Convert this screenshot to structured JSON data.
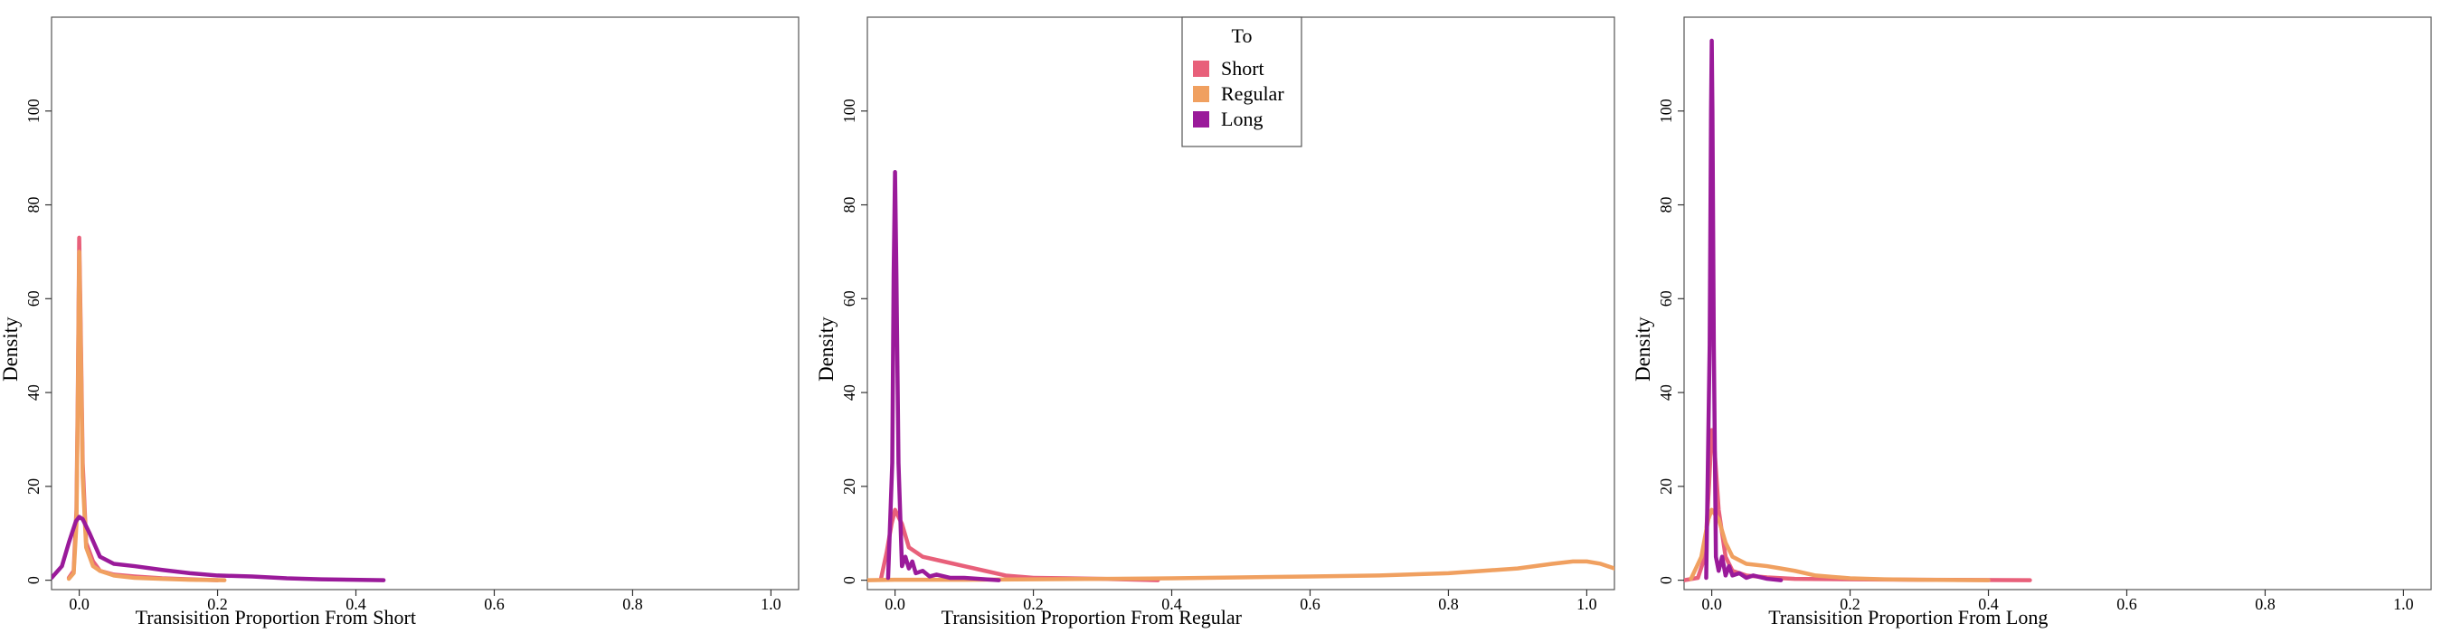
{
  "legend": {
    "title": "To",
    "entries": [
      {
        "label": "Short",
        "color": "#e8607a"
      },
      {
        "label": "Regular",
        "color": "#f0a060"
      },
      {
        "label": "Long",
        "color": "#9a1a9a"
      }
    ],
    "placement": "top-center of middle panel"
  },
  "chart_data": [
    {
      "type": "line",
      "subtype": "density",
      "xlabel": "Transisition Proportion From Short",
      "ylabel": "Density",
      "xlim": [
        -0.04,
        1.04
      ],
      "ylim": [
        -2,
        120
      ],
      "xticks": [
        "0.0",
        "0.2",
        "0.4",
        "0.6",
        "0.8",
        "1.0"
      ],
      "yticks": [
        "0",
        "20",
        "40",
        "60",
        "80",
        "100"
      ],
      "grid": false,
      "series": [
        {
          "name": "Short",
          "color": "#e8607a",
          "points": [
            [
              -0.015,
              0.5
            ],
            [
              -0.008,
              2
            ],
            [
              -0.004,
              15
            ],
            [
              -0.002,
              40
            ],
            [
              0,
              73
            ],
            [
              0.002,
              55
            ],
            [
              0.005,
              25
            ],
            [
              0.01,
              8
            ],
            [
              0.02,
              4
            ],
            [
              0.03,
              2
            ],
            [
              0.05,
              1.2
            ],
            [
              0.08,
              0.8
            ],
            [
              0.12,
              0.4
            ],
            [
              0.16,
              0.2
            ],
            [
              0.2,
              0
            ]
          ]
        },
        {
          "name": "Regular",
          "color": "#f0a060",
          "points": [
            [
              -0.015,
              0.3
            ],
            [
              -0.008,
              1.5
            ],
            [
              -0.004,
              12
            ],
            [
              -0.002,
              38
            ],
            [
              0,
              70
            ],
            [
              0.002,
              52
            ],
            [
              0.005,
              22
            ],
            [
              0.01,
              7
            ],
            [
              0.02,
              3
            ],
            [
              0.03,
              2
            ],
            [
              0.05,
              1
            ],
            [
              0.08,
              0.5
            ],
            [
              0.12,
              0.3
            ],
            [
              0.16,
              0.1
            ],
            [
              0.21,
              0
            ]
          ]
        },
        {
          "name": "Long",
          "color": "#9a1a9a",
          "points": [
            [
              -0.04,
              0.5
            ],
            [
              -0.025,
              3
            ],
            [
              -0.015,
              8
            ],
            [
              -0.005,
              12.5
            ],
            [
              0,
              13.5
            ],
            [
              0.005,
              13
            ],
            [
              0.015,
              10
            ],
            [
              0.03,
              5
            ],
            [
              0.05,
              3.5
            ],
            [
              0.08,
              3
            ],
            [
              0.12,
              2.2
            ],
            [
              0.16,
              1.5
            ],
            [
              0.2,
              1
            ],
            [
              0.25,
              0.8
            ],
            [
              0.3,
              0.4
            ],
            [
              0.35,
              0.2
            ],
            [
              0.44,
              0
            ]
          ]
        }
      ]
    },
    {
      "type": "line",
      "subtype": "density",
      "xlabel": "Transisition Proportion From Regular",
      "ylabel": "Density",
      "xlim": [
        -0.04,
        1.04
      ],
      "ylim": [
        -2,
        120
      ],
      "xticks": [
        "0.0",
        "0.2",
        "0.4",
        "0.6",
        "0.8",
        "1.0"
      ],
      "yticks": [
        "0",
        "20",
        "40",
        "60",
        "80",
        "100"
      ],
      "grid": false,
      "series": [
        {
          "name": "Short",
          "color": "#e8607a",
          "points": [
            [
              -0.02,
              0.5
            ],
            [
              -0.012,
              6
            ],
            [
              -0.005,
              12
            ],
            [
              0,
              15
            ],
            [
              0.01,
              12
            ],
            [
              0.02,
              7
            ],
            [
              0.04,
              5
            ],
            [
              0.07,
              4
            ],
            [
              0.1,
              3
            ],
            [
              0.13,
              2
            ],
            [
              0.16,
              1
            ],
            [
              0.2,
              0.5
            ],
            [
              0.25,
              0.4
            ],
            [
              0.3,
              0.3
            ],
            [
              0.38,
              0
            ]
          ]
        },
        {
          "name": "Regular",
          "color": "#f0a060",
          "points": [
            [
              -0.04,
              0
            ],
            [
              0,
              0.1
            ],
            [
              0.1,
              0.1
            ],
            [
              0.2,
              0.2
            ],
            [
              0.3,
              0.3
            ],
            [
              0.4,
              0.4
            ],
            [
              0.5,
              0.6
            ],
            [
              0.6,
              0.8
            ],
            [
              0.7,
              1
            ],
            [
              0.8,
              1.5
            ],
            [
              0.85,
              2
            ],
            [
              0.9,
              2.5
            ],
            [
              0.95,
              3.5
            ],
            [
              0.98,
              4
            ],
            [
              1.0,
              4
            ],
            [
              1.02,
              3.5
            ],
            [
              1.04,
              2.5
            ]
          ]
        },
        {
          "name": "Long",
          "color": "#9a1a9a",
          "points": [
            [
              -0.01,
              0.5
            ],
            [
              -0.004,
              25
            ],
            [
              -0.002,
              65
            ],
            [
              0,
              87
            ],
            [
              0.002,
              65
            ],
            [
              0.005,
              25
            ],
            [
              0.01,
              3
            ],
            [
              0.015,
              5
            ],
            [
              0.02,
              2.5
            ],
            [
              0.025,
              4
            ],
            [
              0.03,
              1.5
            ],
            [
              0.04,
              2
            ],
            [
              0.05,
              0.8
            ],
            [
              0.06,
              1.2
            ],
            [
              0.08,
              0.5
            ],
            [
              0.1,
              0.5
            ],
            [
              0.15,
              0
            ]
          ]
        }
      ]
    },
    {
      "type": "line",
      "subtype": "density",
      "xlabel": "Transisition Proportion From Long",
      "ylabel": "Density",
      "xlim": [
        -0.04,
        1.04
      ],
      "ylim": [
        -2,
        120
      ],
      "xticks": [
        "0.0",
        "0.2",
        "0.4",
        "0.6",
        "0.8",
        "1.0"
      ],
      "yticks": [
        "0",
        "20",
        "40",
        "60",
        "80",
        "100"
      ],
      "grid": false,
      "series": [
        {
          "name": "Short",
          "color": "#e8607a",
          "points": [
            [
              -0.04,
              0
            ],
            [
              -0.02,
              0.5
            ],
            [
              -0.01,
              5
            ],
            [
              -0.004,
              20
            ],
            [
              0,
              32
            ],
            [
              0.004,
              28
            ],
            [
              0.01,
              15
            ],
            [
              0.02,
              5
            ],
            [
              0.03,
              2
            ],
            [
              0.05,
              1
            ],
            [
              0.08,
              0.6
            ],
            [
              0.12,
              0.3
            ],
            [
              0.2,
              0.2
            ],
            [
              0.3,
              0.1
            ],
            [
              0.46,
              0
            ]
          ]
        },
        {
          "name": "Regular",
          "color": "#f0a060",
          "points": [
            [
              -0.03,
              0.3
            ],
            [
              -0.015,
              5
            ],
            [
              -0.005,
              13
            ],
            [
              0,
              15
            ],
            [
              0.01,
              13
            ],
            [
              0.02,
              8
            ],
            [
              0.03,
              5
            ],
            [
              0.05,
              3.5
            ],
            [
              0.08,
              3
            ],
            [
              0.1,
              2.5
            ],
            [
              0.12,
              2
            ],
            [
              0.15,
              1
            ],
            [
              0.2,
              0.4
            ],
            [
              0.25,
              0.2
            ],
            [
              0.3,
              0.1
            ],
            [
              0.4,
              0
            ]
          ]
        },
        {
          "name": "Long",
          "color": "#9a1a9a",
          "points": [
            [
              -0.008,
              0.5
            ],
            [
              -0.003,
              50
            ],
            [
              -0.001,
              100
            ],
            [
              0,
              115
            ],
            [
              0.001,
              100
            ],
            [
              0.003,
              50
            ],
            [
              0.006,
              5
            ],
            [
              0.01,
              2
            ],
            [
              0.015,
              5
            ],
            [
              0.02,
              1
            ],
            [
              0.025,
              3
            ],
            [
              0.03,
              1
            ],
            [
              0.04,
              1.5
            ],
            [
              0.05,
              0.5
            ],
            [
              0.06,
              1
            ],
            [
              0.08,
              0.3
            ],
            [
              0.1,
              0
            ]
          ]
        }
      ]
    }
  ]
}
